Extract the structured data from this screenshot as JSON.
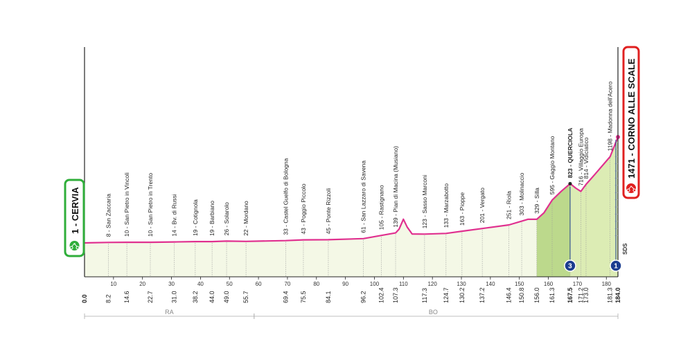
{
  "chart_data": {
    "type": "area",
    "x_unit": "km",
    "xlim": [
      0,
      184
    ],
    "ylim": [
      0,
      1500
    ],
    "x_ticks": [
      10,
      20,
      30,
      40,
      50,
      60,
      70,
      80,
      90,
      100,
      110,
      120,
      130,
      140,
      150,
      160,
      170,
      180
    ],
    "profile": [
      [
        0,
        1
      ],
      [
        8.2,
        8
      ],
      [
        14.6,
        10
      ],
      [
        22.7,
        10
      ],
      [
        31.0,
        14
      ],
      [
        38.2,
        19
      ],
      [
        44.0,
        19
      ],
      [
        49.0,
        26
      ],
      [
        55.7,
        22
      ],
      [
        69.4,
        33
      ],
      [
        75.5,
        43
      ],
      [
        84.1,
        45
      ],
      [
        96.2,
        61
      ],
      [
        102.4,
        105
      ],
      [
        107.3,
        139
      ],
      [
        108.5,
        190
      ],
      [
        110,
        330
      ],
      [
        111.3,
        220
      ],
      [
        113,
        125
      ],
      [
        117.3,
        123
      ],
      [
        124.7,
        133
      ],
      [
        130.2,
        163
      ],
      [
        137.2,
        201
      ],
      [
        146.4,
        251
      ],
      [
        150.8,
        303
      ],
      [
        153,
        330
      ],
      [
        156.0,
        329
      ],
      [
        158.5,
        420
      ],
      [
        161.3,
        595
      ],
      [
        164.5,
        720
      ],
      [
        167.5,
        823
      ],
      [
        169.5,
        760
      ],
      [
        171.2,
        716
      ],
      [
        173.0,
        814
      ],
      [
        176,
        950
      ],
      [
        181.3,
        1198
      ],
      [
        184.0,
        1471
      ]
    ],
    "places": [
      {
        "km": "0.0",
        "alt": "",
        "name": ""
      },
      {
        "km": "8.2",
        "alt": "8",
        "name": "San Zaccaria"
      },
      {
        "km": "14.6",
        "alt": "10",
        "name": "San Pietro in Vincoli"
      },
      {
        "km": "22.7",
        "alt": "10",
        "name": "San Pietro in Trento"
      },
      {
        "km": "31.0",
        "alt": "14",
        "name": "Bv. di Russi"
      },
      {
        "km": "38.2",
        "alt": "19",
        "name": "Cotignola"
      },
      {
        "km": "44.0",
        "alt": "19",
        "name": "Barbiano"
      },
      {
        "km": "49.0",
        "alt": "26",
        "name": "Solarolo"
      },
      {
        "km": "55.7",
        "alt": "22",
        "name": "Mordano"
      },
      {
        "km": "69.4",
        "alt": "33",
        "name": "Castel Guelfo di Bologna"
      },
      {
        "km": "75.5",
        "alt": "43",
        "name": "Poggio Piccolo"
      },
      {
        "km": "84.1",
        "alt": "45",
        "name": "Ponte Rizzoli"
      },
      {
        "km": "96.2",
        "alt": "61",
        "name": "San Lazzaro di Savena"
      },
      {
        "km": "102.4",
        "alt": "105",
        "name": "Rastignano"
      },
      {
        "km": "107.3",
        "alt": "139",
        "name": "Pian di Macina (Musiano)"
      },
      {
        "km": "117.3",
        "alt": "123",
        "name": "Sasso Marconi"
      },
      {
        "km": "124.7",
        "alt": "133",
        "name": "Marzabotto"
      },
      {
        "km": "130.2",
        "alt": "163",
        "name": "Pioppe"
      },
      {
        "km": "137.2",
        "alt": "201",
        "name": "Vergato"
      },
      {
        "km": "146.4",
        "alt": "251",
        "name": "Riola"
      },
      {
        "km": "150.8",
        "alt": "303",
        "name": "Molinaccio"
      },
      {
        "km": "156.0",
        "alt": "329",
        "name": "Silla"
      },
      {
        "km": "161.3",
        "alt": "595",
        "name": "Gaggio Montano"
      },
      {
        "km": "167.5",
        "alt": "823",
        "name": "QUERCIOLA",
        "bold": true
      },
      {
        "km": "171.2",
        "alt": "716",
        "name": "Villaggio Europa"
      },
      {
        "km": "173.0",
        "alt": "814",
        "name": "Vidiciatico"
      },
      {
        "km": "181.3",
        "alt": "1198",
        "name": "Madonna dell'Acero"
      },
      {
        "km": "184.0",
        "alt": "",
        "name": ""
      }
    ],
    "start": "1 - CERVIA",
    "finish": "1471 - CORNO ALLE SCALE",
    "regions": [
      "RA",
      "BO"
    ],
    "sprint_label": "SDS",
    "climb_markers": [
      {
        "km": 167.5,
        "category": "3"
      },
      {
        "km": 184.0,
        "category": "1"
      }
    ],
    "colors": {
      "profile_line": "#e0308f",
      "flat_fill": "#f4f8e6",
      "climb_fill_light": "#dcecb4",
      "climb_fill_dark": "#bcd98c",
      "start_border": "#2fae3a",
      "finish_border": "#e02020",
      "marker_fill": "#1b3d8f"
    }
  }
}
